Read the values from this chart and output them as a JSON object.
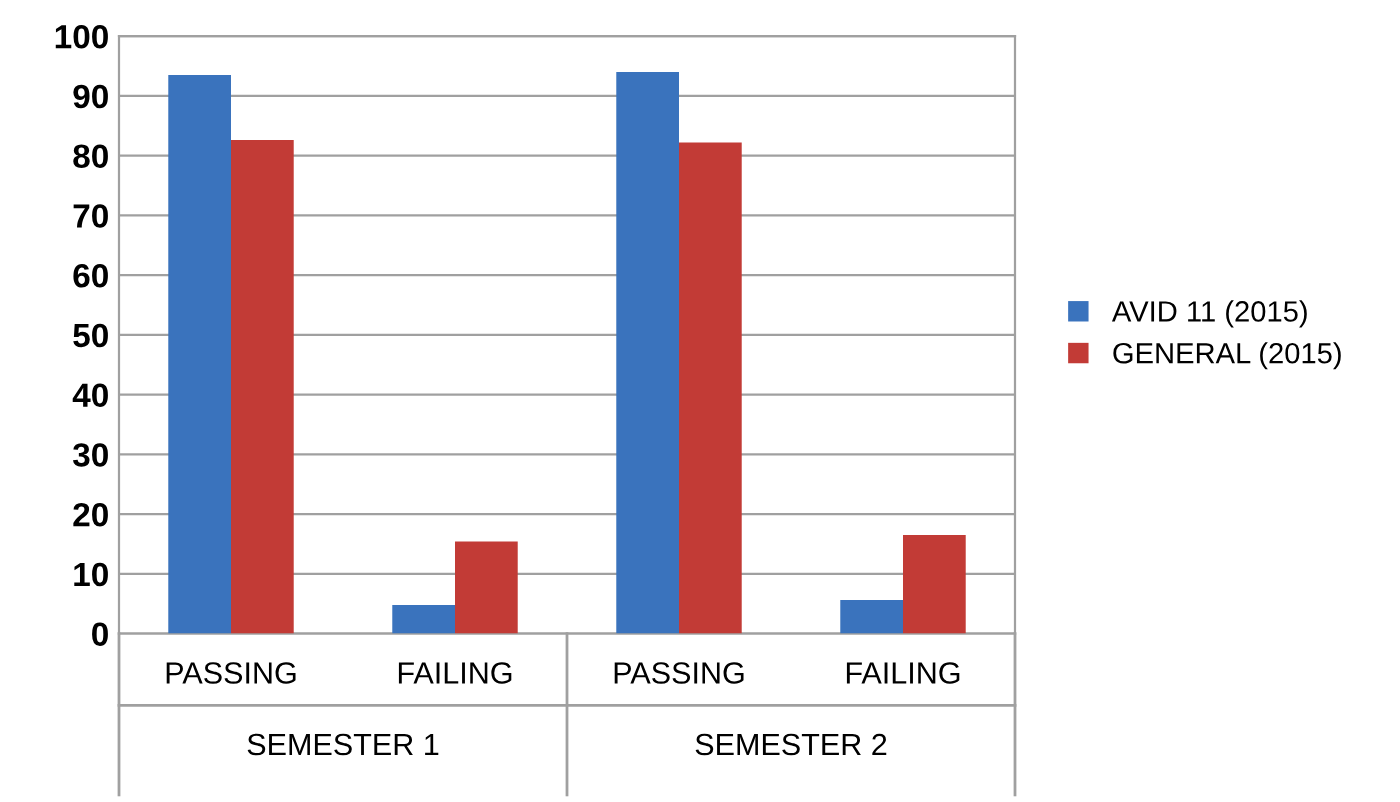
{
  "chart_data": {
    "type": "bar",
    "categories": [
      "PASSING",
      "FAILING",
      "PASSING",
      "FAILING"
    ],
    "series": [
      {
        "name": "AVID 11 (2015)",
        "color": "#3a73bd",
        "values": [
          93.5,
          4.8,
          94.0,
          5.6
        ]
      },
      {
        "name": "GENERAL (2015)",
        "color": "#c23b36",
        "values": [
          82.6,
          15.4,
          82.2,
          16.5
        ]
      }
    ],
    "annotations": [
      "SEMESTER 1",
      "SEMESTER 2"
    ],
    "ylim": [
      0,
      100
    ],
    "yticks": [
      0,
      10,
      20,
      30,
      40,
      50,
      60,
      70,
      80,
      90,
      100
    ],
    "grid": "y",
    "legend": "right"
  }
}
